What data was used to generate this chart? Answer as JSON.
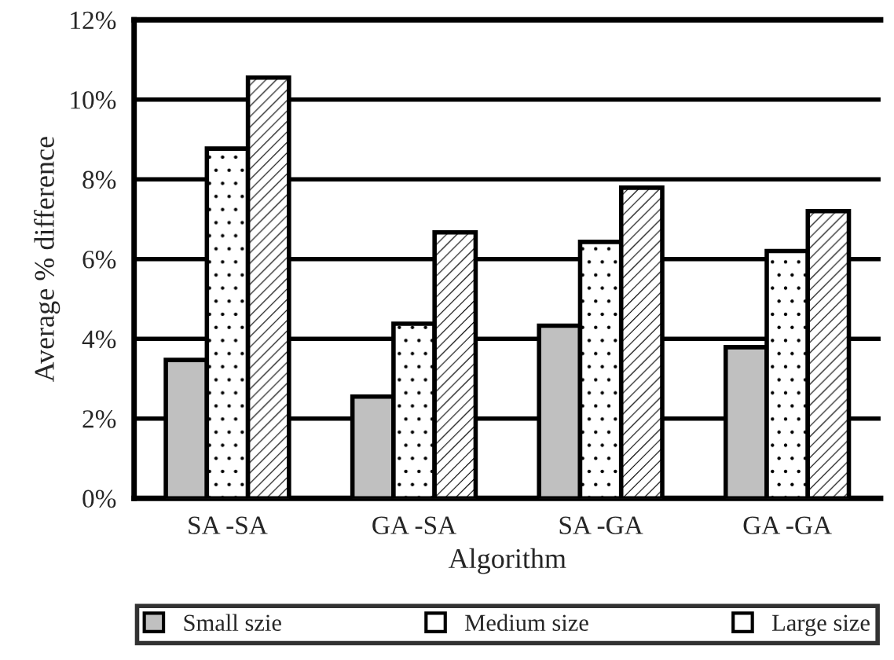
{
  "chart_data": {
    "type": "bar",
    "xlabel": "Algorithm",
    "ylabel": "Average % difference",
    "categories": [
      "SA -SA",
      "GA -SA",
      "SA -GA",
      "GA -GA"
    ],
    "series": [
      {
        "name": "Small szie",
        "color": "#c0c0c0",
        "values": [
          3.47,
          2.55,
          4.33,
          3.79
        ]
      },
      {
        "name": "Medium size",
        "color": "#ffffff",
        "values": [
          8.77,
          4.38,
          6.43,
          6.2
        ]
      },
      {
        "name": "Large size",
        "color": "#ffffff",
        "values": [
          10.55,
          6.67,
          7.79,
          7.2
        ]
      }
    ],
    "ylim": [
      0,
      12
    ],
    "yticks": [
      {
        "value": 0,
        "label": "0%"
      },
      {
        "value": 2,
        "label": "2%"
      },
      {
        "value": 4,
        "label": "4%"
      },
      {
        "value": 6,
        "label": "6%"
      },
      {
        "value": 8,
        "label": "8%"
      },
      {
        "value": 10,
        "label": "10%"
      },
      {
        "value": 12,
        "label": "12%"
      }
    ],
    "grid": "y",
    "legend": "bottom"
  }
}
